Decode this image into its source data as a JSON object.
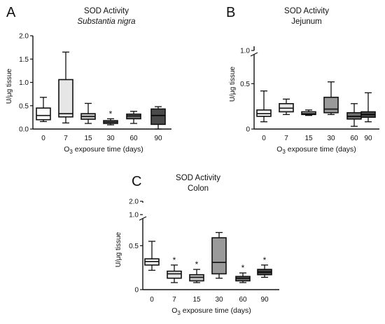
{
  "chart_data": [
    {
      "type": "box",
      "panel_letter": "A",
      "title": "SOD Activity",
      "subtitle": "Substantia nigra",
      "ylabel": "U/μg tissue",
      "xlabel": "O3 exposure time (days)",
      "xlabel_parts": [
        "O",
        "3",
        " exposure time (days)"
      ],
      "y_ticks": [
        "0.0",
        "0.5",
        "1.0",
        "1.5",
        "2.0"
      ],
      "y_tick_values": [
        0,
        0.5,
        1.0,
        1.5,
        2.0
      ],
      "ylim": [
        0,
        2.0
      ],
      "axis_break": false,
      "categories": [
        "0",
        "7",
        "15",
        "30",
        "60",
        "90"
      ],
      "boxes": [
        {
          "category": "0",
          "min": 0.16,
          "q1": 0.2,
          "median": 0.29,
          "q3": 0.45,
          "max": 0.68,
          "fill": "#ffffff",
          "significant": false
        },
        {
          "category": "7",
          "min": 0.13,
          "q1": 0.26,
          "median": 0.33,
          "q3": 1.06,
          "max": 1.65,
          "fill": "#e6e6e6",
          "significant": false
        },
        {
          "category": "15",
          "min": 0.12,
          "q1": 0.21,
          "median": 0.27,
          "q3": 0.33,
          "max": 0.55,
          "fill": "#c4c4c4",
          "significant": false
        },
        {
          "category": "30",
          "min": 0.09,
          "q1": 0.12,
          "median": 0.15,
          "q3": 0.18,
          "max": 0.22,
          "fill": "#9a9a9a",
          "significant": true
        },
        {
          "category": "60",
          "min": 0.12,
          "q1": 0.22,
          "median": 0.28,
          "q3": 0.32,
          "max": 0.38,
          "fill": "#6f6f6f",
          "significant": false
        },
        {
          "category": "90",
          "min": 0.0,
          "q1": 0.1,
          "median": 0.29,
          "q3": 0.43,
          "max": 0.48,
          "fill": "#4a4a4a",
          "significant": false
        }
      ],
      "significance_mark": "*"
    },
    {
      "type": "box",
      "panel_letter": "B",
      "title": "SOD Activity",
      "subtitle": "Jejunum",
      "ylabel": "U/μg tissue",
      "xlabel": "O3 exposure time (days)",
      "xlabel_parts": [
        "O",
        "3",
        " exposure time (days)"
      ],
      "y_ticks": [
        "0",
        "0.5",
        "1.0"
      ],
      "y_tick_values": [
        0,
        0.5,
        1.0
      ],
      "ylim": [
        0,
        1.0
      ],
      "axis_break": true,
      "categories": [
        "0",
        "7",
        "15",
        "30",
        "60",
        "90"
      ],
      "boxes": [
        {
          "category": "0",
          "min": 0.08,
          "q1": 0.14,
          "median": 0.17,
          "q3": 0.21,
          "max": 0.42,
          "fill": "#ffffff",
          "significant": false
        },
        {
          "category": "7",
          "min": 0.16,
          "q1": 0.19,
          "median": 0.23,
          "q3": 0.28,
          "max": 0.33,
          "fill": "#e6e6e6",
          "significant": false
        },
        {
          "category": "15",
          "min": 0.15,
          "q1": 0.16,
          "median": 0.17,
          "q3": 0.19,
          "max": 0.21,
          "fill": "#c4c4c4",
          "significant": false
        },
        {
          "category": "30",
          "min": 0.16,
          "q1": 0.18,
          "median": 0.22,
          "q3": 0.35,
          "max": 0.52,
          "fill": "#9a9a9a",
          "significant": false
        },
        {
          "category": "60",
          "min": 0.03,
          "q1": 0.11,
          "median": 0.14,
          "q3": 0.18,
          "max": 0.28,
          "fill": "#6f6f6f",
          "significant": false
        },
        {
          "category": "90",
          "min": 0.08,
          "q1": 0.13,
          "median": 0.16,
          "q3": 0.19,
          "max": 0.4,
          "fill": "#4a4a4a",
          "significant": false
        }
      ],
      "significance_mark": "*"
    },
    {
      "type": "box",
      "panel_letter": "C",
      "title": "SOD Activity",
      "subtitle": "Colon",
      "ylabel": "U/μg tissue",
      "xlabel": "O3 exposure time (days)",
      "xlabel_parts": [
        "O",
        "3",
        " exposure time (days)"
      ],
      "y_ticks": [
        "0",
        "0.5",
        "1.0",
        "2.0"
      ],
      "y_tick_values": [
        0,
        0.5,
        1.0,
        2.0
      ],
      "ylim": [
        0,
        2.0
      ],
      "axis_break": true,
      "categories": [
        "0",
        "7",
        "15",
        "30",
        "60",
        "90"
      ],
      "boxes": [
        {
          "category": "0",
          "min": 0.22,
          "q1": 0.28,
          "median": 0.32,
          "q3": 0.35,
          "max": 0.55,
          "fill": "#ffffff",
          "significant": false
        },
        {
          "category": "7",
          "min": 0.08,
          "q1": 0.13,
          "median": 0.18,
          "q3": 0.21,
          "max": 0.28,
          "fill": "#e6e6e6",
          "significant": true
        },
        {
          "category": "15",
          "min": 0.08,
          "q1": 0.1,
          "median": 0.14,
          "q3": 0.17,
          "max": 0.23,
          "fill": "#c4c4c4",
          "significant": true
        },
        {
          "category": "30",
          "min": 0.13,
          "q1": 0.18,
          "median": 0.31,
          "q3": 0.59,
          "max": 0.65,
          "fill": "#9a9a9a",
          "significant": false
        },
        {
          "category": "60",
          "min": 0.08,
          "q1": 0.1,
          "median": 0.13,
          "q3": 0.15,
          "max": 0.19,
          "fill": "#6f6f6f",
          "significant": true
        },
        {
          "category": "90",
          "min": 0.14,
          "q1": 0.17,
          "median": 0.2,
          "q3": 0.23,
          "max": 0.28,
          "fill": "#4a4a4a",
          "significant": true
        }
      ],
      "significance_mark": "*"
    }
  ]
}
